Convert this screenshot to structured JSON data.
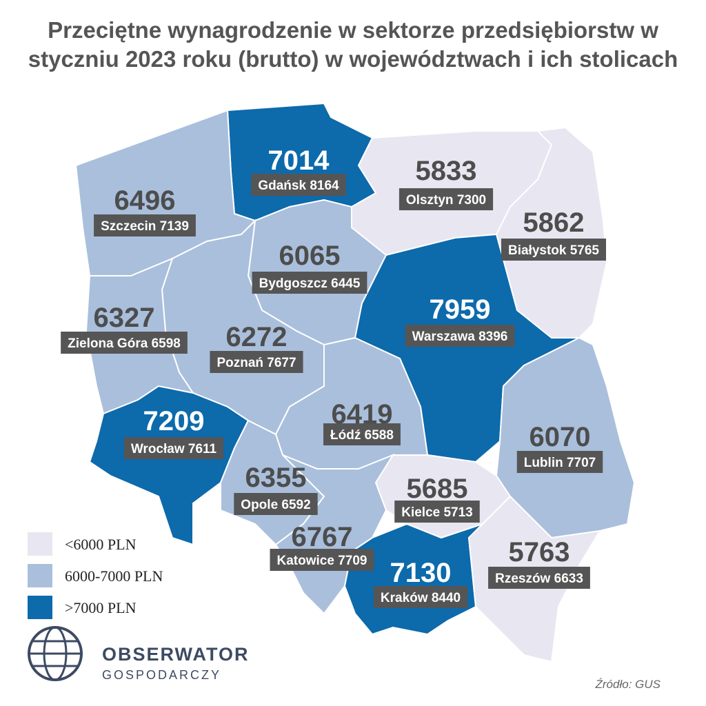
{
  "title_lines": [
    "Przeciętne wynagrodzenie w sektorze przedsiębiorstw w",
    "styczniu 2023 roku (brutto) w województwach i ich stolicach"
  ],
  "regions": [
    {
      "value": 7014,
      "capital": "Gdańsk",
      "capital_value": 8164,
      "color": "#0d6aab"
    },
    {
      "value": 6496,
      "capital": "Szczecin",
      "capital_value": 7139,
      "color": "#a9bfdc"
    },
    {
      "value": 5833,
      "capital": "Olsztyn",
      "capital_value": 7300,
      "color": "#e8e6f1"
    },
    {
      "value": 5862,
      "capital": "Białystok",
      "capital_value": 5765,
      "color": "#e8e6f1"
    },
    {
      "value": 6065,
      "capital": "Bydgoszcz",
      "capital_value": 6445,
      "color": "#a9bfdc"
    },
    {
      "value": 6272,
      "capital": "Poznań",
      "capital_value": 7677,
      "color": "#a9bfdc"
    },
    {
      "value": 6327,
      "capital": "Zielona Góra",
      "capital_value": 6598,
      "color": "#a9bfdc"
    },
    {
      "value": 7959,
      "capital": "Warszawa",
      "capital_value": 8396,
      "color": "#0d6aab"
    },
    {
      "value": 6419,
      "capital": "Łódź",
      "capital_value": 6588,
      "color": "#a9bfdc"
    },
    {
      "value": 7209,
      "capital": "Wrocław",
      "capital_value": 7611,
      "color": "#0d6aab"
    },
    {
      "value": 6070,
      "capital": "Lublin",
      "capital_value": 7707,
      "color": "#a9bfdc"
    },
    {
      "value": 6355,
      "capital": "Opole",
      "capital_value": 6592,
      "color": "#a9bfdc"
    },
    {
      "value": 5685,
      "capital": "Kielce",
      "capital_value": 5713,
      "color": "#e8e6f1"
    },
    {
      "value": 6767,
      "capital": "Katowice",
      "capital_value": 7709,
      "color": "#a9bfdc"
    },
    {
      "value": 7130,
      "capital": "Kraków",
      "capital_value": 8440,
      "color": "#0d6aab"
    },
    {
      "value": 5763,
      "capital": "Rzeszów",
      "capital_value": 6633,
      "color": "#e8e6f1"
    }
  ],
  "legend": [
    {
      "label": "<6000 PLN",
      "color": "#e8e6f1"
    },
    {
      "label": "6000-7000 PLN",
      "color": "#a9bfdc"
    },
    {
      "label": ">7000 PLN",
      "color": "#0d6aab"
    }
  ],
  "logo": {
    "name": "OBSERWATOR",
    "subtitle": "GOSPODARCZY"
  },
  "source": "Źródło: GUS"
}
